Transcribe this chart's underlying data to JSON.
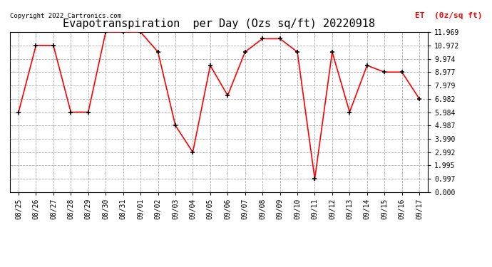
{
  "title": "Evapotranspiration  per Day (Ozs sq/ft) 20220918",
  "legend_label": "ET  (0z/sq ft)",
  "copyright": "Copyright 2022 Cartronics.com",
  "dates": [
    "08/25",
    "08/26",
    "08/27",
    "08/28",
    "08/29",
    "08/30",
    "08/31",
    "09/01",
    "09/02",
    "09/03",
    "09/04",
    "09/05",
    "09/06",
    "09/07",
    "09/08",
    "09/09",
    "09/10",
    "09/11",
    "09/12",
    "09/13",
    "09/14",
    "09/15",
    "09/16",
    "09/17"
  ],
  "values": [
    5.984,
    10.972,
    10.972,
    5.984,
    5.984,
    11.969,
    11.969,
    11.969,
    10.485,
    4.987,
    2.992,
    9.474,
    7.23,
    10.485,
    11.47,
    11.47,
    10.485,
    0.997,
    10.485,
    5.984,
    9.474,
    8.977,
    8.977,
    6.982
  ],
  "ylim": [
    0.0,
    11.969
  ],
  "yticks": [
    0.0,
    0.997,
    1.995,
    2.992,
    3.99,
    4.987,
    5.984,
    6.982,
    7.979,
    8.977,
    9.974,
    10.972,
    11.969
  ],
  "line_color": "red",
  "marker_color": "black",
  "background_color": "white",
  "grid_color": "#aaaaaa",
  "title_fontsize": 11,
  "tick_fontsize": 7,
  "legend_color": "red",
  "copyright_color": "black",
  "fig_width": 6.9,
  "fig_height": 3.75,
  "fig_dpi": 100
}
